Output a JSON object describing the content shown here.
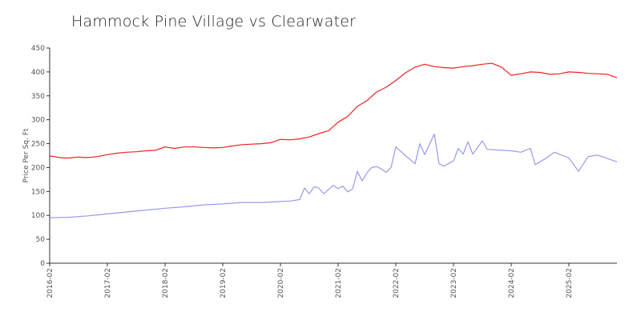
{
  "chart_data": {
    "type": "line",
    "title": "Hammock Pine Village vs Clearwater",
    "xlabel": "",
    "ylabel": "Price Per Sq. Ft",
    "ylim": [
      0,
      450
    ],
    "yticks": [
      0,
      50,
      100,
      150,
      200,
      250,
      300,
      350,
      400,
      450
    ],
    "xlim": [
      "2016-02",
      "2025-12"
    ],
    "xticks": [
      "2016-02",
      "2017-02",
      "2018-02",
      "2019-02",
      "2020-02",
      "2021-02",
      "2022-02",
      "2023-02",
      "2024-02",
      "2025-02"
    ],
    "grid": false,
    "legend": "none",
    "series": [
      {
        "color": "#ee2222",
        "points": [
          [
            "2016-02",
            224
          ],
          [
            "2016-03",
            223
          ],
          [
            "2016-04",
            221
          ],
          [
            "2016-05",
            220
          ],
          [
            "2016-06",
            220
          ],
          [
            "2016-07",
            221
          ],
          [
            "2016-08",
            222
          ],
          [
            "2016-09",
            221
          ],
          [
            "2016-10",
            221
          ],
          [
            "2016-11",
            222
          ],
          [
            "2016-12",
            223
          ],
          [
            "2017-01",
            225
          ],
          [
            "2017-02",
            227
          ],
          [
            "2017-04",
            230
          ],
          [
            "2017-06",
            232
          ],
          [
            "2017-08",
            233
          ],
          [
            "2017-10",
            235
          ],
          [
            "2017-12",
            236
          ],
          [
            "2018-02",
            243
          ],
          [
            "2018-04",
            240
          ],
          [
            "2018-06",
            243
          ],
          [
            "2018-08",
            243
          ],
          [
            "2018-10",
            242
          ],
          [
            "2018-12",
            241
          ],
          [
            "2019-02",
            242
          ],
          [
            "2019-04",
            245
          ],
          [
            "2019-06",
            248
          ],
          [
            "2019-08",
            249
          ],
          [
            "2019-10",
            250
          ],
          [
            "2019-12",
            252
          ],
          [
            "2020-02",
            259
          ],
          [
            "2020-04",
            258
          ],
          [
            "2020-06",
            260
          ],
          [
            "2020-08",
            264
          ],
          [
            "2020-10",
            271
          ],
          [
            "2020-12",
            277
          ],
          [
            "2021-02",
            295
          ],
          [
            "2021-04",
            307
          ],
          [
            "2021-06",
            328
          ],
          [
            "2021-08",
            340
          ],
          [
            "2021-10",
            358
          ],
          [
            "2021-12",
            368
          ],
          [
            "2022-02",
            382
          ],
          [
            "2022-04",
            398
          ],
          [
            "2022-06",
            410
          ],
          [
            "2022-08",
            416
          ],
          [
            "2022-10",
            411
          ],
          [
            "2022-12",
            409
          ],
          [
            "2023-02",
            408
          ],
          [
            "2023-04",
            411
          ],
          [
            "2023-06",
            413
          ],
          [
            "2023-08",
            416
          ],
          [
            "2023-10",
            418
          ],
          [
            "2023-12",
            410
          ],
          [
            "2024-02",
            393
          ],
          [
            "2024-04",
            396
          ],
          [
            "2024-06",
            400
          ],
          [
            "2024-08",
            399
          ],
          [
            "2024-10",
            395
          ],
          [
            "2024-12",
            396
          ],
          [
            "2025-02",
            400
          ],
          [
            "2025-04",
            399
          ],
          [
            "2025-06",
            397
          ],
          [
            "2025-08",
            396
          ],
          [
            "2025-10",
            395
          ],
          [
            "2025-12",
            388
          ]
        ]
      },
      {
        "color": "#9999ee",
        "points": [
          [
            "2016-02",
            95
          ],
          [
            "2016-06",
            96
          ],
          [
            "2016-10",
            99
          ],
          [
            "2017-02",
            103
          ],
          [
            "2017-06",
            107
          ],
          [
            "2017-10",
            111
          ],
          [
            "2018-02",
            115
          ],
          [
            "2018-06",
            118
          ],
          [
            "2018-10",
            122
          ],
          [
            "2019-02",
            124
          ],
          [
            "2019-06",
            127
          ],
          [
            "2019-10",
            127
          ],
          [
            "2020-02",
            129
          ],
          [
            "2020-04",
            130
          ],
          [
            "2020-06",
            133
          ],
          [
            "2020-07",
            157
          ],
          [
            "2020-08",
            145
          ],
          [
            "2020-09",
            160
          ],
          [
            "2020-10",
            157
          ],
          [
            "2020-11",
            145
          ],
          [
            "2021-01",
            163
          ],
          [
            "2021-02",
            156
          ],
          [
            "2021-03",
            161
          ],
          [
            "2021-04",
            149
          ],
          [
            "2021-05",
            155
          ],
          [
            "2021-06",
            192
          ],
          [
            "2021-07",
            172
          ],
          [
            "2021-08",
            189
          ],
          [
            "2021-09",
            200
          ],
          [
            "2021-10",
            202
          ],
          [
            "2021-11",
            197
          ],
          [
            "2021-12",
            190
          ],
          [
            "2022-01",
            200
          ],
          [
            "2022-02",
            243
          ],
          [
            "2022-04",
            225
          ],
          [
            "2022-06",
            208
          ],
          [
            "2022-07",
            250
          ],
          [
            "2022-08",
            227
          ],
          [
            "2022-10",
            270
          ],
          [
            "2022-11",
            208
          ],
          [
            "2022-12",
            203
          ],
          [
            "2023-02",
            214
          ],
          [
            "2023-03",
            240
          ],
          [
            "2023-04",
            228
          ],
          [
            "2023-05",
            254
          ],
          [
            "2023-06",
            228
          ],
          [
            "2023-08",
            256
          ],
          [
            "2023-09",
            238
          ],
          [
            "2024-02",
            235
          ],
          [
            "2024-04",
            232
          ],
          [
            "2024-06",
            240
          ],
          [
            "2024-07",
            206
          ],
          [
            "2024-09",
            218
          ],
          [
            "2024-11",
            232
          ],
          [
            "2025-02",
            220
          ],
          [
            "2025-04",
            192
          ],
          [
            "2025-06",
            223
          ],
          [
            "2025-08",
            226
          ],
          [
            "2025-12",
            212
          ]
        ]
      }
    ]
  }
}
